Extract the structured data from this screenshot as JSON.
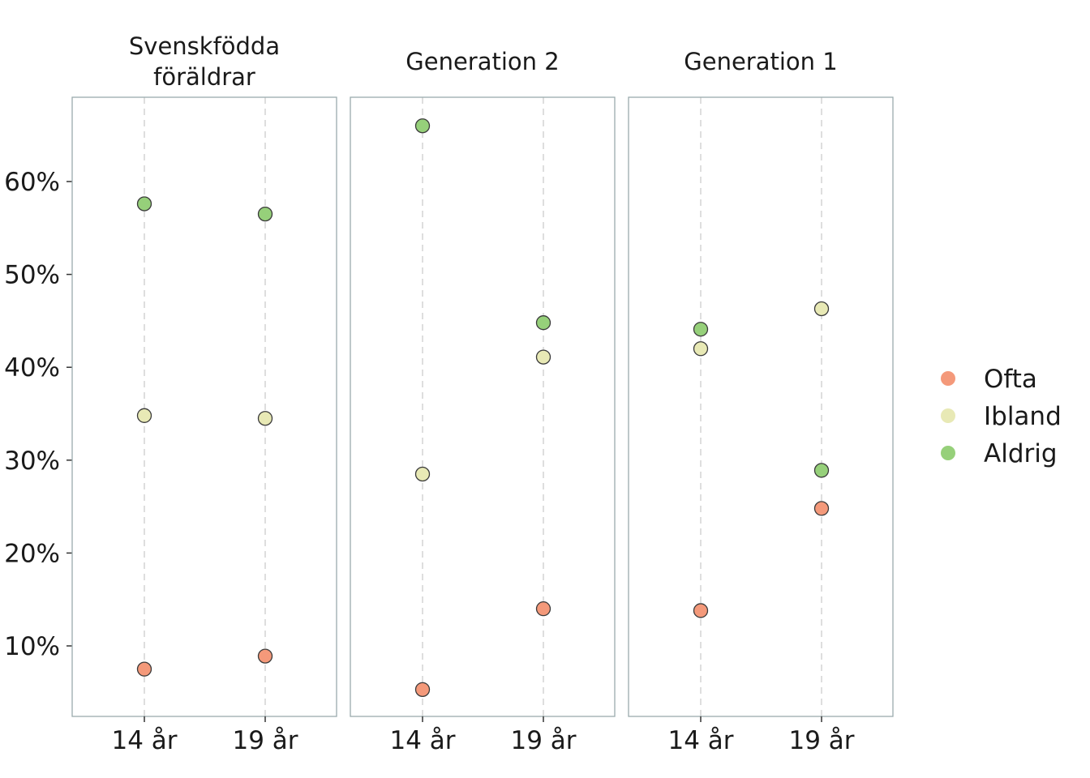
{
  "chart_data": {
    "type": "scatter",
    "categories": [
      "14 år",
      "19 år"
    ],
    "y_tick_labels": [
      "10%",
      "20%",
      "30%",
      "40%",
      "50%",
      "60%"
    ],
    "ylim": [
      3,
      69
    ],
    "grid_y": false,
    "grid_x": "dashed",
    "legend_position": "right",
    "legend": [
      {
        "name": "Ofta",
        "color": "#f4997a"
      },
      {
        "name": "Ibland",
        "color": "#e8e9b5"
      },
      {
        "name": "Aldrig",
        "color": "#96d07a"
      }
    ],
    "facets": [
      {
        "title_lines": [
          "Svenskfödda",
          "föräldrar"
        ],
        "series": [
          {
            "name": "Ofta",
            "values": [
              7.5,
              8.9
            ]
          },
          {
            "name": "Ibland",
            "values": [
              34.8,
              34.5
            ]
          },
          {
            "name": "Aldrig",
            "values": [
              57.6,
              56.5
            ]
          }
        ]
      },
      {
        "title_lines": [
          "Generation 2"
        ],
        "series": [
          {
            "name": "Ofta",
            "values": [
              5.3,
              14.0
            ]
          },
          {
            "name": "Ibland",
            "values": [
              28.5,
              41.1
            ]
          },
          {
            "name": "Aldrig",
            "values": [
              66.0,
              44.8
            ]
          }
        ]
      },
      {
        "title_lines": [
          "Generation 1"
        ],
        "series": [
          {
            "name": "Ofta",
            "values": [
              13.8,
              24.8
            ]
          },
          {
            "name": "Ibland",
            "values": [
              42.0,
              46.3
            ]
          },
          {
            "name": "Aldrig",
            "values": [
              44.1,
              28.9
            ]
          }
        ]
      }
    ],
    "point_stroke": "#3a3a3a"
  }
}
